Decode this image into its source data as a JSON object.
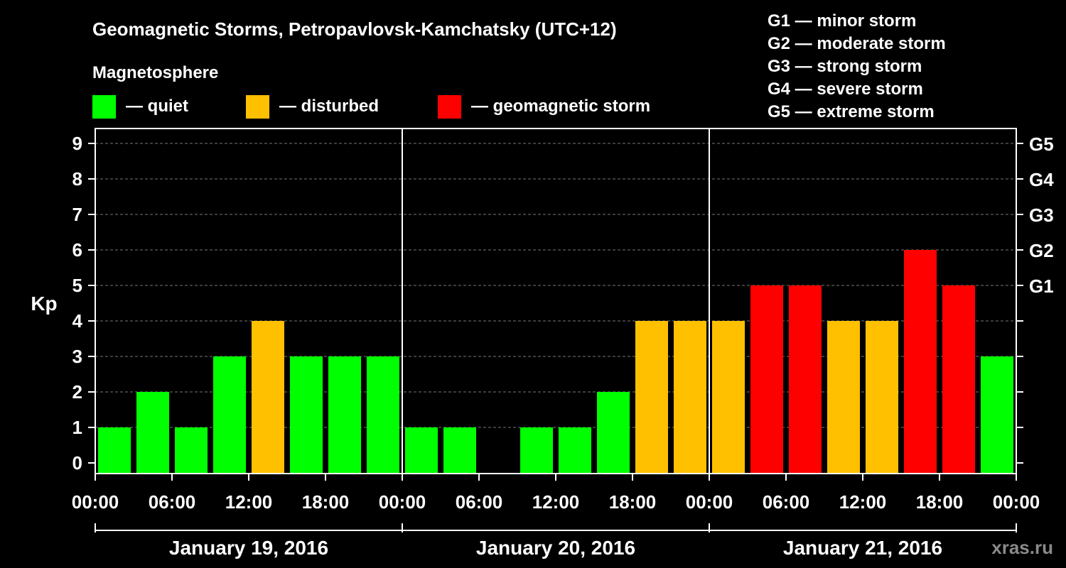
{
  "chart_data": {
    "type": "bar",
    "title": "Geomagnetic Storms, Petropavlovsk-Kamchatsky (UTC+12)",
    "legend_title": "Magnetosphere",
    "legend": [
      {
        "label": "— quiet",
        "color": "#00ff00"
      },
      {
        "label": "— disturbed",
        "color": "#ffc000"
      },
      {
        "label": "— geomagnetic storm",
        "color": "#ff0000"
      }
    ],
    "storm_scale": [
      "G1 — minor storm",
      "G2 — moderate storm",
      "G3 — strong storm",
      "G4 — severe storm",
      "G5 — extreme storm"
    ],
    "ylabel": "Kp",
    "ylim": [
      0,
      9
    ],
    "yticks": [
      "0",
      "1",
      "2",
      "3",
      "4",
      "5",
      "6",
      "7",
      "8",
      "9"
    ],
    "right_ticks": [
      {
        "value": 5,
        "label": "G1"
      },
      {
        "value": 6,
        "label": "G2"
      },
      {
        "value": 7,
        "label": "G3"
      },
      {
        "value": 8,
        "label": "G4"
      },
      {
        "value": 9,
        "label": "G5"
      }
    ],
    "xticks": [
      "00:00",
      "06:00",
      "12:00",
      "18:00",
      "00:00",
      "06:00",
      "12:00",
      "18:00",
      "00:00",
      "06:00",
      "12:00",
      "18:00",
      "00:00"
    ],
    "days": [
      "January 19, 2016",
      "January 20, 2016",
      "January 21, 2016"
    ],
    "values": [
      1,
      2,
      1,
      3,
      4,
      3,
      3,
      3,
      1,
      1,
      0,
      1,
      1,
      2,
      4,
      4,
      4,
      5,
      5,
      4,
      4,
      6,
      5,
      3
    ],
    "level_colors": {
      "quiet": "#00ff00",
      "disturbed": "#ffc000",
      "storm": "#ff0000"
    },
    "thresholds": {
      "disturbed": 4,
      "storm": 5
    }
  },
  "watermark": "xras.ru"
}
